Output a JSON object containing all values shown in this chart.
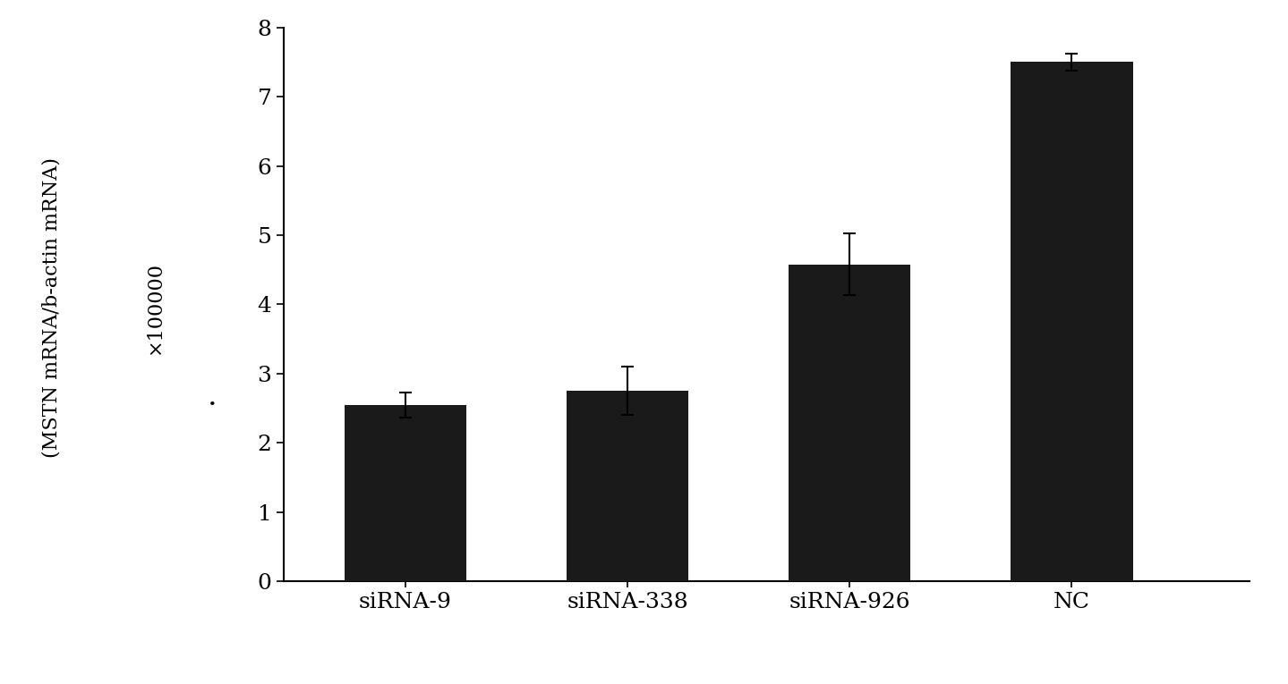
{
  "categories": [
    "siRNA-9",
    "siRNA-338",
    "siRNA-926",
    "NC"
  ],
  "values": [
    2.55,
    2.75,
    4.58,
    7.5
  ],
  "errors": [
    0.18,
    0.35,
    0.45,
    0.12
  ],
  "bar_color": "#1a1a1a",
  "bar_width": 0.55,
  "ylabel_top": "(MSTN mRNA/b-actin mRNA)",
  "ylabel_bottom": "×100000",
  "ylim": [
    0,
    8
  ],
  "yticks": [
    0,
    1,
    2,
    3,
    4,
    5,
    6,
    7,
    8
  ],
  "background_color": "#ffffff",
  "xlabel_fontsize": 18,
  "ylabel_fontsize": 16,
  "tick_fontsize": 18,
  "error_capsize": 5,
  "error_linewidth": 1.5,
  "bar_positions": [
    1,
    2,
    3,
    4
  ],
  "xlim": [
    0.45,
    4.8
  ]
}
